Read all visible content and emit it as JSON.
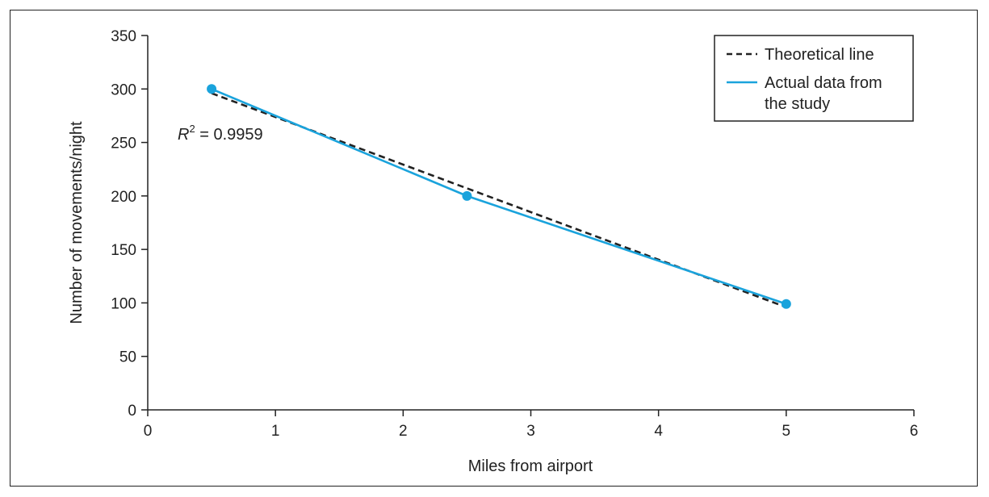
{
  "chart_data": {
    "type": "line",
    "xlabel": "Miles from airport",
    "ylabel": "Number of movements/night",
    "xlim": [
      0,
      6
    ],
    "ylim": [
      0,
      350
    ],
    "xticks": [
      "0",
      "1",
      "2",
      "3",
      "4",
      "5",
      "6"
    ],
    "yticks": [
      "0",
      "50",
      "100",
      "150",
      "200",
      "250",
      "300",
      "350"
    ],
    "grid": false,
    "legend_position": "top-right",
    "series": [
      {
        "name": "Theoretical line",
        "style": "dashed",
        "color": "#222222",
        "x": [
          0.5,
          5.0
        ],
        "y": [
          296,
          96
        ]
      },
      {
        "name": "Actual data from the study",
        "style": "solid",
        "markers": true,
        "color": "#1aa3dc",
        "x": [
          0.5,
          2.5,
          5.0
        ],
        "y": [
          300,
          200,
          99
        ]
      }
    ],
    "legend": {
      "theoretical": "Theoretical line",
      "actual_line1": "Actual data from",
      "actual_line2": "the study"
    },
    "annotation": {
      "r_symbol": "R",
      "r_exponent": "2",
      "r_value": " = 0.9959"
    }
  }
}
